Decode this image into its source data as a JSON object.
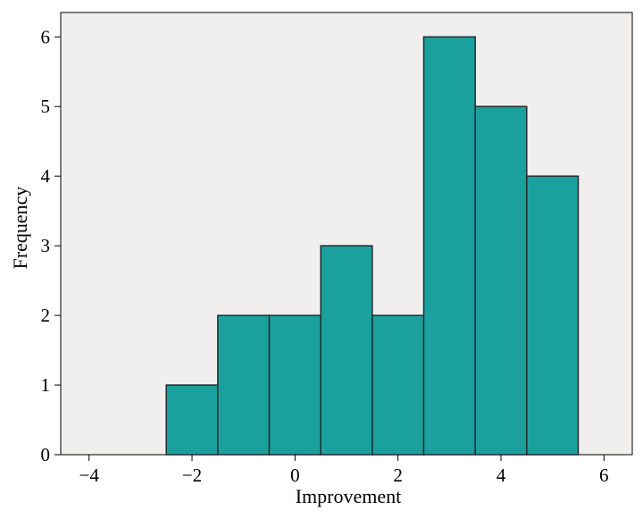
{
  "chart_data": {
    "type": "bar",
    "title": "",
    "xlabel": "Improvement",
    "ylabel": "Frequency",
    "xlim": [
      -4.55,
      6.55
    ],
    "ylim": [
      0,
      6.35
    ],
    "xticks": [
      -4,
      -2,
      0,
      2,
      4,
      6
    ],
    "xtick_labels": [
      "−4",
      "−2",
      "0",
      "2",
      "4",
      "6"
    ],
    "yticks": [
      0,
      1,
      2,
      3,
      4,
      5,
      6
    ],
    "ytick_labels": [
      "0",
      "1",
      "2",
      "3",
      "4",
      "5",
      "6"
    ],
    "bin_width": 1,
    "bins": [
      {
        "start": -2.5,
        "end": -1.5,
        "count": 1
      },
      {
        "start": -1.5,
        "end": -0.5,
        "count": 2
      },
      {
        "start": -0.5,
        "end": 0.5,
        "count": 2
      },
      {
        "start": 0.5,
        "end": 1.5,
        "count": 3
      },
      {
        "start": 1.5,
        "end": 2.5,
        "count": 2
      },
      {
        "start": 2.5,
        "end": 3.5,
        "count": 6
      },
      {
        "start": 3.5,
        "end": 4.5,
        "count": 5
      },
      {
        "start": 4.5,
        "end": 5.5,
        "count": 4
      }
    ],
    "grid": false,
    "colors": {
      "bar_fill": "#1aa19e",
      "bar_stroke": "#1f2f2f",
      "plot_background": "#f0efee",
      "axis": "#000000"
    }
  }
}
